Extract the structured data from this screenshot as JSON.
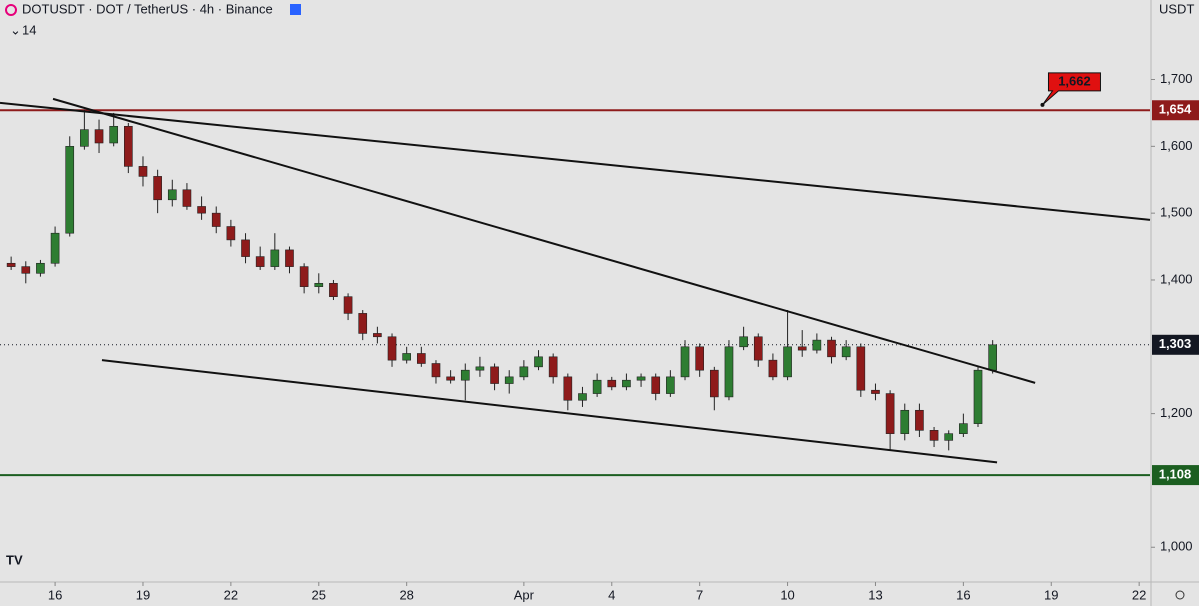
{
  "chart_data": {
    "type": "candlestick",
    "title": "DOTUSDT · DOT / TetherUS · 4h · Binance",
    "indicator_count": "14",
    "currency": "USDT",
    "up_color": "#2e7d32",
    "down_color": "#8e1b1b",
    "x": [
      -1.5,
      -1,
      -0.5,
      0,
      0.5,
      1,
      1.5,
      2,
      2.5,
      3,
      3.5,
      4,
      4.5,
      5,
      5.5,
      6,
      6.5,
      7,
      7.5,
      8,
      8.5,
      9,
      9.5,
      10,
      10.5,
      11,
      11.5,
      12,
      12.5,
      13,
      13.5,
      14,
      14.5,
      15,
      15.5,
      16,
      16.5,
      17,
      17.5,
      18,
      18.5,
      19,
      19.5,
      20,
      20.5,
      21,
      21.5,
      22,
      22.5,
      23,
      23.5,
      24,
      24.5,
      25,
      25.5,
      26,
      26.5,
      27,
      27.5,
      28,
      28.5,
      29,
      29.5,
      30,
      30.5,
      31,
      31.5,
      32
    ],
    "open": [
      1.425,
      1.42,
      1.41,
      1.425,
      1.47,
      1.6,
      1.625,
      1.605,
      1.63,
      1.57,
      1.555,
      1.52,
      1.535,
      1.51,
      1.5,
      1.48,
      1.46,
      1.435,
      1.42,
      1.445,
      1.42,
      1.39,
      1.395,
      1.375,
      1.35,
      1.32,
      1.315,
      1.28,
      1.29,
      1.275,
      1.255,
      1.25,
      1.265,
      1.27,
      1.245,
      1.255,
      1.27,
      1.285,
      1.255,
      1.22,
      1.23,
      1.25,
      1.24,
      1.25,
      1.255,
      1.23,
      1.255,
      1.3,
      1.265,
      1.225,
      1.3,
      1.315,
      1.28,
      1.255,
      1.3,
      1.295,
      1.31,
      1.285,
      1.3,
      1.235,
      1.23,
      1.17,
      1.205,
      1.175,
      1.16,
      1.17,
      1.185,
      1.265
    ],
    "high": [
      1.435,
      1.428,
      1.43,
      1.48,
      1.615,
      1.655,
      1.64,
      1.65,
      1.635,
      1.585,
      1.565,
      1.55,
      1.545,
      1.525,
      1.51,
      1.49,
      1.47,
      1.45,
      1.47,
      1.45,
      1.425,
      1.41,
      1.4,
      1.38,
      1.355,
      1.33,
      1.32,
      1.3,
      1.3,
      1.28,
      1.265,
      1.275,
      1.285,
      1.275,
      1.265,
      1.28,
      1.295,
      1.29,
      1.26,
      1.24,
      1.26,
      1.255,
      1.26,
      1.26,
      1.26,
      1.265,
      1.31,
      1.305,
      1.27,
      1.31,
      1.33,
      1.32,
      1.29,
      1.355,
      1.325,
      1.32,
      1.315,
      1.31,
      1.305,
      1.245,
      1.235,
      1.215,
      1.215,
      1.18,
      1.175,
      1.2,
      1.27,
      1.31
    ],
    "low": [
      1.415,
      1.395,
      1.405,
      1.42,
      1.465,
      1.595,
      1.59,
      1.6,
      1.56,
      1.54,
      1.5,
      1.51,
      1.505,
      1.49,
      1.47,
      1.45,
      1.425,
      1.415,
      1.415,
      1.41,
      1.38,
      1.38,
      1.37,
      1.34,
      1.31,
      1.305,
      1.27,
      1.275,
      1.27,
      1.245,
      1.245,
      1.22,
      1.255,
      1.235,
      1.23,
      1.25,
      1.265,
      1.245,
      1.205,
      1.21,
      1.225,
      1.235,
      1.235,
      1.24,
      1.22,
      1.225,
      1.25,
      1.255,
      1.205,
      1.22,
      1.295,
      1.27,
      1.25,
      1.25,
      1.285,
      1.29,
      1.275,
      1.28,
      1.225,
      1.22,
      1.145,
      1.16,
      1.165,
      1.15,
      1.145,
      1.165,
      1.18,
      1.26
    ],
    "close": [
      1.42,
      1.41,
      1.425,
      1.47,
      1.6,
      1.625,
      1.605,
      1.63,
      1.57,
      1.555,
      1.52,
      1.535,
      1.51,
      1.5,
      1.48,
      1.46,
      1.435,
      1.42,
      1.445,
      1.42,
      1.39,
      1.395,
      1.375,
      1.35,
      1.32,
      1.315,
      1.28,
      1.29,
      1.275,
      1.255,
      1.25,
      1.265,
      1.27,
      1.245,
      1.255,
      1.27,
      1.285,
      1.255,
      1.22,
      1.23,
      1.25,
      1.24,
      1.25,
      1.255,
      1.23,
      1.255,
      1.3,
      1.265,
      1.225,
      1.3,
      1.315,
      1.28,
      1.255,
      1.3,
      1.295,
      1.31,
      1.285,
      1.3,
      1.235,
      1.23,
      1.17,
      1.205,
      1.175,
      1.16,
      1.17,
      1.185,
      1.265,
      1.303
    ],
    "xlim": [
      -1.88,
      37.37
    ],
    "xticks": [
      {
        "value": 0,
        "label": "16"
      },
      {
        "value": 3,
        "label": "19"
      },
      {
        "value": 6,
        "label": "22"
      },
      {
        "value": 9,
        "label": "25"
      },
      {
        "value": 12,
        "label": "28"
      },
      {
        "value": 16,
        "label": "Apr"
      },
      {
        "value": 19,
        "label": "4"
      },
      {
        "value": 22,
        "label": "7"
      },
      {
        "value": 25,
        "label": "10"
      },
      {
        "value": 28,
        "label": "13"
      },
      {
        "value": 31,
        "label": "16"
      },
      {
        "value": 34,
        "label": "19"
      },
      {
        "value": 37,
        "label": "22"
      }
    ],
    "ylim": [
      0.948,
      1.819
    ],
    "yticks": [
      {
        "value": 1.0,
        "label": "1,000"
      },
      {
        "value": 1.2,
        "label": "1,200"
      },
      {
        "value": 1.4,
        "label": "1,400"
      },
      {
        "value": 1.5,
        "label": "1,500"
      },
      {
        "value": 1.6,
        "label": "1,600"
      },
      {
        "value": 1.7,
        "label": "1,700"
      }
    ],
    "levels": [
      {
        "value": 1.654,
        "label": "1,654",
        "color": "#8e1b1b",
        "style": "solid"
      },
      {
        "value": 1.303,
        "label": "1,303",
        "color": "#131722",
        "style": "dotted"
      },
      {
        "value": 1.108,
        "label": "1,108",
        "color": "#1b5e20",
        "style": "solid"
      }
    ],
    "callout": {
      "value": 1.662,
      "label": "1,662",
      "x": 33.7,
      "color": "#e01010"
    },
    "trendlines": [
      {
        "x": [
          -1.88,
          37.37
        ],
        "y": [
          1.665,
          1.49
        ]
      },
      {
        "x": [
          -0.07,
          33.45
        ],
        "y": [
          1.671,
          1.246
        ]
      },
      {
        "x": [
          1.6,
          32.15
        ],
        "y": [
          1.28,
          1.127
        ]
      }
    ]
  }
}
